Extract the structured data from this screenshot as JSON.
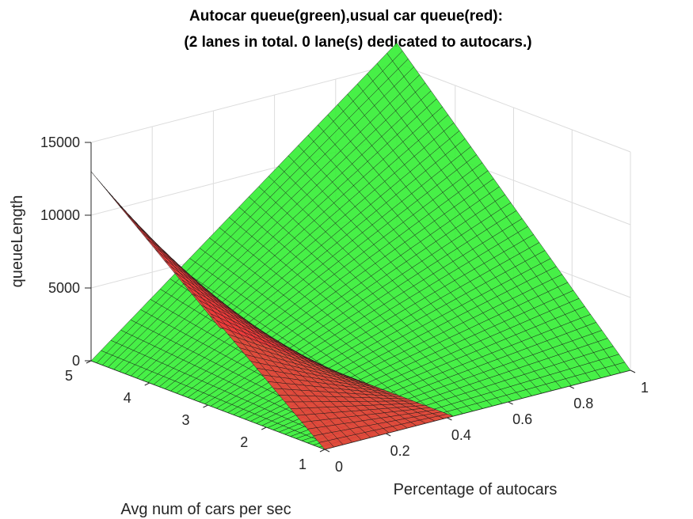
{
  "chart_data": {
    "type": "surface3d",
    "title_lines": [
      "Autocar queue(green),usual car queue(red):",
      "(2 lanes in total. 0 lane(s) dedicated to autocars.)"
    ],
    "xlabel": "Percentage of autocars",
    "ylabel": "Avg num of cars per sec",
    "zlabel": "queueLength",
    "xlim": [
      0,
      1
    ],
    "ylim": [
      1,
      5
    ],
    "zlim": [
      0,
      15000
    ],
    "xticks": [
      "0",
      "0.2",
      "0.4",
      "0.6",
      "0.8",
      "1"
    ],
    "yticks": [
      "1",
      "2",
      "3",
      "4",
      "5"
    ],
    "zticks": [
      "0",
      "5000",
      "10000",
      "15000"
    ],
    "grid": true,
    "series": [
      {
        "name": "Autocar queue",
        "color": "#33ee33",
        "surface": "z increases with both autocar percentage and cars per sec",
        "corners": {
          "x0_y1": 0,
          "x1_y1": 0,
          "x0_y5": 0,
          "x1_y5": 16400
        },
        "nx": 31,
        "ny": 41
      },
      {
        "name": "usual car queue",
        "color": "#ee3b3b",
        "surface": "z decreases with autocar percentage and becomes zero beyond about 0.4",
        "corners": {
          "x0_y1": 0,
          "x0_y5": 13000
        },
        "zero_beyond_x": 0.42,
        "nx": 14,
        "ny": 41
      }
    ]
  }
}
